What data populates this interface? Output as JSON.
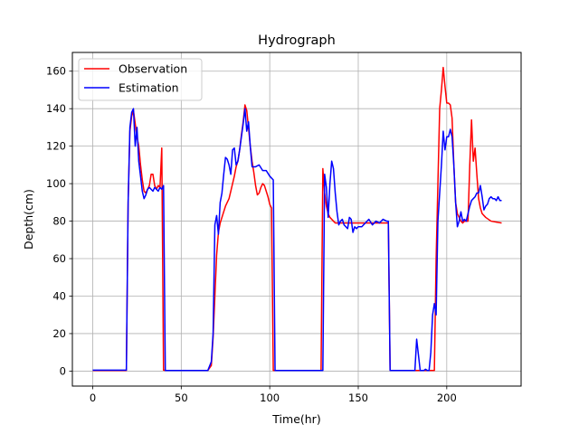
{
  "chart_data": {
    "type": "line",
    "title": "Hydrograph",
    "xlabel": "Time(hr)",
    "ylabel": "Depth(cm)",
    "xlim": [
      -11.5,
      242
    ],
    "ylim": [
      -8,
      170
    ],
    "xticks": [
      0,
      50,
      100,
      150,
      200
    ],
    "yticks": [
      0,
      20,
      40,
      60,
      80,
      100,
      120,
      140,
      160
    ],
    "grid": true,
    "legend_position": "top-left",
    "series": [
      {
        "name": "Observation",
        "color": "#ff0000",
        "x": [
          0,
          5,
          10,
          15,
          19,
          20,
          21,
          22,
          23,
          24,
          25,
          26,
          27,
          28,
          29,
          30,
          31,
          32,
          33,
          34,
          35,
          36,
          37,
          38,
          39,
          40,
          41,
          45,
          50,
          55,
          60,
          65,
          67,
          68,
          69,
          70,
          71,
          72,
          73,
          74,
          75,
          76,
          77,
          78,
          79,
          80,
          81,
          82,
          83,
          84,
          85,
          86,
          87,
          88,
          89,
          90,
          91,
          92,
          93,
          94,
          95,
          96,
          97,
          98,
          99,
          100,
          101,
          102,
          103,
          104,
          110,
          120,
          129,
          130,
          131,
          132,
          133,
          134,
          135,
          136,
          137,
          138,
          140,
          145,
          150,
          155,
          160,
          165,
          167,
          168,
          170,
          175,
          180,
          185,
          190,
          193,
          194,
          195,
          196,
          197,
          198,
          199,
          200,
          201,
          202,
          203,
          204,
          205,
          206,
          207,
          208,
          209,
          210,
          211,
          212,
          213,
          214,
          215,
          216,
          217,
          218,
          219,
          220,
          222,
          225,
          228,
          231
        ],
        "y": [
          0.3,
          0.3,
          0.3,
          0.3,
          0.3,
          90,
          128,
          136,
          139,
          132,
          125,
          120,
          110,
          102,
          96,
          95,
          97,
          99,
          105,
          105,
          99,
          97,
          99,
          98,
          119,
          0.5,
          0.3,
          0.3,
          0.3,
          0.3,
          0.3,
          0.3,
          3,
          18,
          40,
          62,
          74,
          79,
          82,
          85,
          88,
          90,
          92,
          96,
          100,
          104,
          109,
          112,
          118,
          126,
          133,
          142,
          139,
          130,
          120,
          112,
          106,
          99,
          94,
          95,
          98,
          100,
          99,
          96,
          93,
          89,
          87,
          0.3,
          0.3,
          0.3,
          0.3,
          0.3,
          0.3,
          108,
          95,
          88,
          84,
          82,
          81,
          80,
          79,
          79,
          79,
          79,
          79,
          79,
          79,
          79,
          79,
          0.3,
          0.3,
          0.3,
          0.3,
          0.3,
          0.3,
          0.3,
          60,
          100,
          140,
          150,
          162,
          152,
          143,
          143,
          142,
          135,
          110,
          90,
          84,
          82,
          80,
          79,
          80,
          80,
          80,
          110,
          134,
          112,
          119,
          105,
          92,
          87,
          84,
          82,
          80,
          79.5,
          79
        ],
        "width": 1.5
      },
      {
        "name": "Estimation",
        "color": "#0000ff",
        "x": [
          0,
          5,
          8,
          10,
          12,
          15,
          19,
          20,
          21,
          22,
          23,
          24,
          25,
          26,
          27,
          28,
          29,
          30,
          31,
          32,
          33,
          34,
          35,
          36,
          37,
          38,
          39,
          40,
          41,
          45,
          50,
          55,
          60,
          65,
          67,
          68,
          69,
          70,
          71,
          72,
          73,
          74,
          75,
          76,
          77,
          78,
          79,
          80,
          81,
          82,
          83,
          84,
          85,
          86,
          87,
          88,
          89,
          90,
          92,
          94,
          96,
          98,
          100,
          102,
          103,
          104,
          110,
          120,
          129,
          130,
          131,
          132,
          133,
          134,
          135,
          136,
          137,
          138,
          139,
          140,
          141,
          142,
          143,
          144,
          145,
          146,
          147,
          148,
          149,
          150,
          152,
          154,
          156,
          158,
          160,
          162,
          164,
          166,
          167,
          168,
          175,
          180,
          182,
          183,
          185,
          187,
          188,
          189,
          190,
          191,
          192,
          193,
          194,
          195,
          196,
          197,
          198,
          199,
          200,
          201,
          202,
          203,
          204,
          205,
          206,
          207,
          208,
          209,
          210,
          211,
          212,
          213,
          214,
          215,
          216,
          217,
          218,
          219,
          220,
          221,
          222,
          223,
          224,
          225,
          226,
          227,
          228,
          229,
          230,
          231
        ],
        "y": [
          0.5,
          0.5,
          0.5,
          0.5,
          0.5,
          0.5,
          0.5,
          90,
          130,
          138,
          140,
          120,
          130,
          112,
          104,
          96,
          92,
          94,
          97,
          98,
          97,
          96,
          98,
          97,
          96,
          98,
          97,
          99,
          0.3,
          0.3,
          0.3,
          0.3,
          0.3,
          0.3,
          5,
          20,
          78,
          83,
          73,
          90,
          95,
          105,
          114,
          113,
          110,
          105,
          118,
          119,
          110,
          112,
          118,
          125,
          132,
          140,
          128,
          133,
          120,
          109,
          109,
          110,
          107,
          107,
          104,
          102,
          0.3,
          0.3,
          0.3,
          0.3,
          0.3,
          0.3,
          105,
          98,
          82,
          100,
          112,
          108,
          95,
          85,
          78,
          80,
          81,
          78,
          77,
          76,
          82,
          81,
          74,
          77,
          76,
          77,
          77,
          79,
          81,
          78,
          80,
          79,
          81,
          80,
          80,
          0.3,
          0.3,
          0.3,
          0.3,
          17,
          0.3,
          0.3,
          1,
          0.3,
          0.3,
          10,
          30,
          36,
          30,
          80,
          95,
          110,
          128,
          118,
          125,
          125,
          129,
          125,
          110,
          90,
          77,
          80,
          85,
          80,
          81,
          80,
          84,
          88,
          91,
          92,
          93,
          95,
          95,
          99,
          93,
          86,
          88,
          89,
          92,
          93,
          92,
          92,
          91,
          93,
          91,
          91
        ],
        "width": 1.5
      }
    ]
  }
}
